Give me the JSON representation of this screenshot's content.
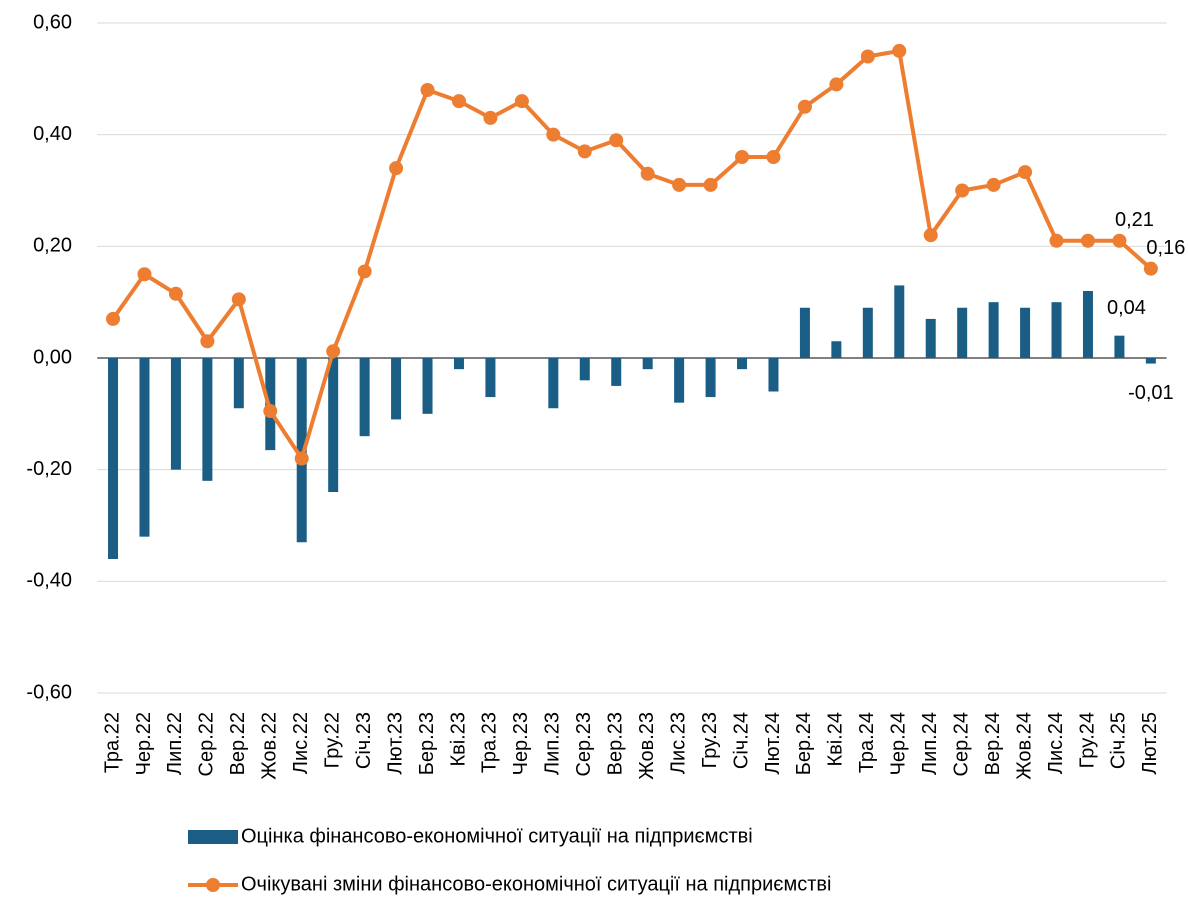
{
  "chart_data": {
    "type": "bar-line",
    "categories": [
      "Тра.22",
      "Чер.22",
      "Лип.22",
      "Сер.22",
      "Вер.22",
      "Жов.22",
      "Лис.22",
      "Гру.22",
      "Січ.23",
      "Лют.23",
      "Бер.23",
      "Кві.23",
      "Тра.23",
      "Чер.23",
      "Лип.23",
      "Сер.23",
      "Вер.23",
      "Жов.23",
      "Лис.23",
      "Гру.23",
      "Січ.24",
      "Лют.24",
      "Бер.24",
      "Кві.24",
      "Тра.24",
      "Чер.24",
      "Лип.24",
      "Сер.24",
      "Вер.24",
      "Жов.24",
      "Лис.24",
      "Гру.24",
      "Січ.25",
      "Лют.25"
    ],
    "series": [
      {
        "name": "Оцінка фінансово-економічної ситуації на підприємстві",
        "type": "bar",
        "color": "#1b5e85",
        "values": [
          -0.36,
          -0.32,
          -0.2,
          -0.22,
          -0.09,
          -0.165,
          -0.33,
          -0.24,
          -0.14,
          -0.11,
          -0.1,
          -0.02,
          -0.07,
          0,
          -0.09,
          -0.04,
          -0.05,
          -0.02,
          -0.08,
          -0.07,
          -0.02,
          -0.06,
          0.09,
          0.03,
          0.09,
          0.13,
          0.07,
          0.09,
          0.1,
          0.09,
          0.1,
          0.12,
          0.04,
          -0.01
        ],
        "value_labels": [
          null,
          null,
          null,
          null,
          null,
          null,
          null,
          null,
          null,
          null,
          null,
          null,
          null,
          null,
          null,
          null,
          null,
          null,
          null,
          null,
          null,
          null,
          null,
          null,
          null,
          null,
          null,
          null,
          null,
          null,
          null,
          null,
          "0,04",
          "-0,01"
        ]
      },
      {
        "name": "Очікувані зміни фінансово-економічної ситуації на підприємстві",
        "type": "line",
        "color": "#ed7d31",
        "values": [
          0.07,
          0.15,
          0.115,
          0.03,
          0.105,
          -0.095,
          -0.18,
          0.012,
          0.155,
          0.34,
          0.48,
          0.46,
          0.43,
          0.46,
          0.4,
          0.37,
          0.39,
          0.33,
          0.31,
          0.31,
          0.36,
          0.36,
          0.45,
          0.49,
          0.54,
          0.55,
          0.22,
          0.3,
          0.31,
          0.333,
          0.21,
          0.21,
          0.21,
          0.16
        ],
        "value_labels": [
          null,
          null,
          null,
          null,
          null,
          null,
          null,
          null,
          null,
          null,
          null,
          null,
          null,
          null,
          null,
          null,
          null,
          null,
          null,
          null,
          null,
          null,
          null,
          null,
          null,
          null,
          null,
          null,
          null,
          null,
          null,
          null,
          "0,21",
          "0,16"
        ]
      }
    ],
    "ylim": [
      -0.6,
      0.6
    ],
    "yticks": [
      {
        "value": -0.6,
        "label": "-0,60"
      },
      {
        "value": -0.4,
        "label": "-0,40"
      },
      {
        "value": -0.2,
        "label": "-0,20"
      },
      {
        "value": 0,
        "label": "0,00"
      },
      {
        "value": 0.2,
        "label": "0,20"
      },
      {
        "value": 0.4,
        "label": "0,40"
      },
      {
        "value": 0.6,
        "label": "0,60"
      }
    ],
    "grid": true,
    "legend": "bottom"
  }
}
